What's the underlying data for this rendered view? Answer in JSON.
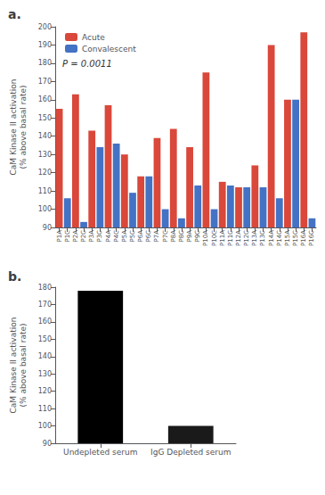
{
  "chart_data": [
    {
      "type": "bar",
      "title": "a.",
      "categories": [
        "P1A",
        "P1C",
        "P2A",
        "P2C",
        "P3A",
        "P3C",
        "P4A",
        "P4C",
        "P5A",
        "P5C",
        "P6A",
        "P6C",
        "P7A",
        "P7C",
        "P8A",
        "P8C",
        "P9A",
        "P9C",
        "P10A",
        "P10C",
        "P11A",
        "P11C",
        "P12A",
        "P12C",
        "P13A",
        "P13C",
        "P14A",
        "P14C",
        "P15A",
        "P15C",
        "P16A",
        "P16C"
      ],
      "series": [
        {
          "name": "Acute",
          "color": "#d9483a",
          "values": [
            155,
            null,
            163,
            null,
            143,
            null,
            157,
            null,
            130,
            null,
            118,
            null,
            139,
            null,
            144,
            null,
            134,
            null,
            175,
            null,
            115,
            null,
            112,
            null,
            124,
            null,
            190,
            null,
            160,
            null,
            197,
            null
          ]
        },
        {
          "name": "Convalescent",
          "color": "#4472c4",
          "values": [
            null,
            106,
            null,
            93,
            null,
            134,
            null,
            136,
            null,
            109,
            null,
            118,
            null,
            100,
            null,
            95,
            null,
            113,
            null,
            100,
            null,
            113,
            null,
            112,
            null,
            112,
            null,
            106,
            null,
            160,
            null,
            95
          ]
        }
      ],
      "ylabel": "CaM Kinase II activation\n(% above basal rate)",
      "annotation": "P = 0.0011",
      "ylim": [
        90,
        200
      ],
      "yticks": [
        90,
        100,
        110,
        120,
        130,
        140,
        150,
        160,
        170,
        180,
        190,
        200
      ],
      "legend": "upper left",
      "grid": false
    },
    {
      "type": "bar",
      "title": "b.",
      "categories": [
        "Undepleted serum",
        "IgG Depleted serum"
      ],
      "values": [
        178,
        100
      ],
      "colors": [
        "#000000",
        "#1a1a1a"
      ],
      "ylabel": "CaM Kinase II activation\n(% above basal rate)",
      "ylim": [
        90,
        180
      ],
      "yticks": [
        90,
        100,
        110,
        120,
        130,
        140,
        150,
        160,
        170,
        180
      ],
      "grid": false
    }
  ]
}
